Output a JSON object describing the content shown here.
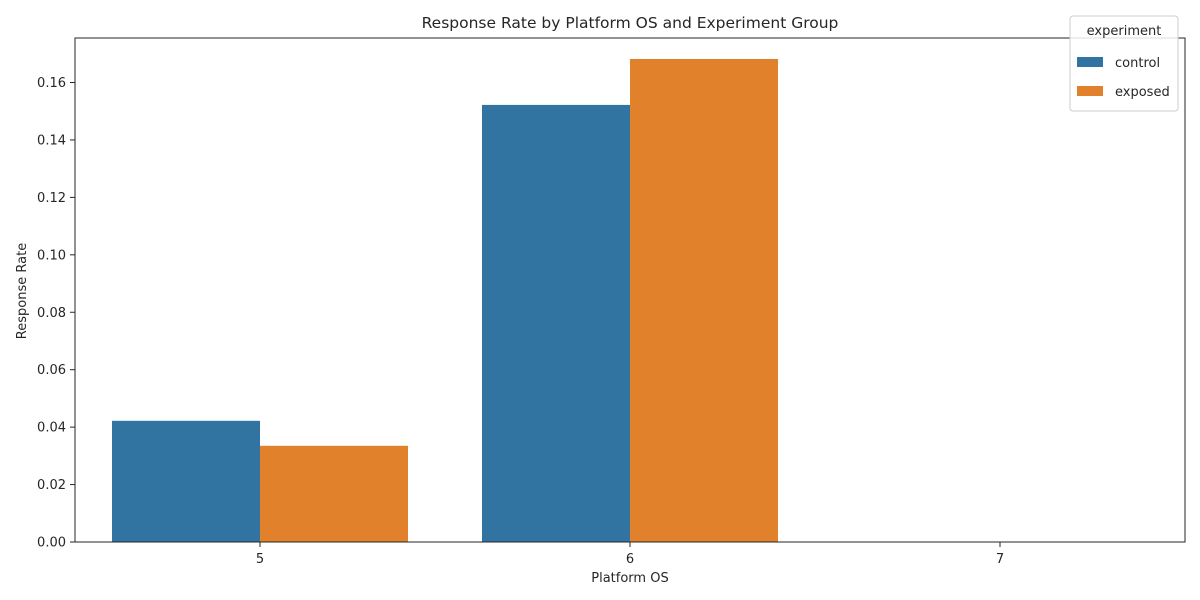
{
  "chart_data": {
    "type": "bar",
    "title": "Response Rate by Platform OS and Experiment Group",
    "xlabel": "Platform OS",
    "ylabel": "Response Rate",
    "categories": [
      "5",
      "6",
      "7"
    ],
    "series": [
      {
        "name": "control",
        "values": [
          0.0422,
          0.1522,
          0
        ],
        "color": "#3274a1"
      },
      {
        "name": "exposed",
        "values": [
          0.0335,
          0.1682,
          0
        ],
        "color": "#e1812c"
      }
    ],
    "ylim": [
      0,
      0.1755
    ],
    "yticks": [
      "0.00",
      "0.02",
      "0.04",
      "0.06",
      "0.08",
      "0.10",
      "0.12",
      "0.14",
      "0.16"
    ],
    "legend": {
      "title": "experiment",
      "position": "top-right"
    },
    "grid": false
  }
}
